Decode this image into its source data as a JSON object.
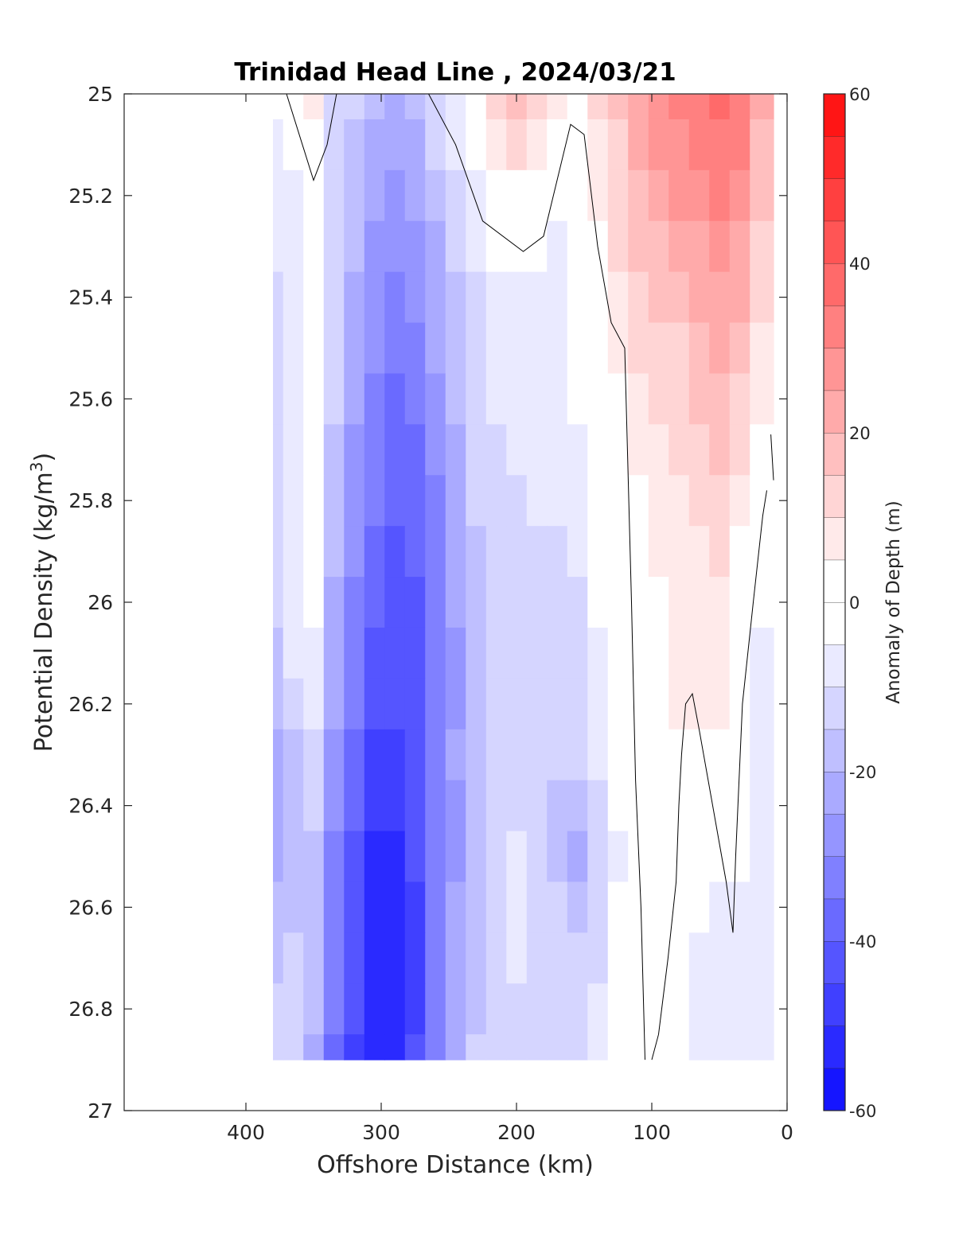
{
  "chart_data": {
    "type": "heatmap",
    "title": "Trinidad Head Line , 2024/03/21",
    "xlabel": "Offshore Distance (km)",
    "ylabel": "Potential Density (kg/m3)",
    "ylabel_main": "Potential Density (kg/m",
    "ylabel_sup": "3",
    "ylabel_close": ")",
    "colorbar_label": "Anomaly of Depth (m)",
    "xlim": [
      490,
      0
    ],
    "ylim": [
      25,
      27
    ],
    "y_reversed": true,
    "x_reversed": true,
    "x_ticks": [
      400,
      300,
      200,
      100,
      0
    ],
    "x_tick_labels": [
      "400",
      "300",
      "200",
      "100",
      "0"
    ],
    "y_ticks": [
      25,
      25.2,
      25.4,
      25.6,
      25.8,
      26,
      26.2,
      26.4,
      26.6,
      26.8,
      27
    ],
    "y_tick_labels": [
      "25",
      "25.2",
      "25.4",
      "25.6",
      "25.8",
      "26",
      "26.2",
      "26.4",
      "26.6",
      "26.8",
      "27"
    ],
    "colorbar_range": [
      -60,
      60
    ],
    "colorbar_step": 5,
    "colorbar_ticks": [
      -60,
      -40,
      -20,
      0,
      20,
      40,
      60
    ],
    "colorbar_tick_labels": [
      "-60",
      "-40",
      "-20",
      "0",
      "20",
      "40",
      "60"
    ],
    "colormap": {
      "negative": "#0000ff",
      "zero": "#ffffff",
      "positive": "#ff0000"
    },
    "data_extent": {
      "x": [
        380,
        10
      ],
      "y": [
        25,
        26.9
      ]
    },
    "grid": false,
    "x": [
      380,
      365,
      350,
      335,
      320,
      305,
      290,
      275,
      260,
      245,
      230,
      215,
      200,
      185,
      170,
      155,
      140,
      125,
      110,
      95,
      80,
      65,
      50,
      35,
      20
    ],
    "y": [
      25,
      25.1,
      25.2,
      25.3,
      25.4,
      25.5,
      25.6,
      25.7,
      25.8,
      25.9,
      26,
      26.1,
      26.2,
      26.3,
      26.4,
      26.5,
      26.6,
      26.7,
      26.8,
      26.9
    ],
    "z": [
      [
        -4,
        -3,
        5,
        -10,
        -14,
        -18,
        -20,
        -16,
        -10,
        -6,
        2,
        10,
        17,
        12,
        5,
        2,
        10,
        15,
        22,
        27,
        30,
        32,
        36,
        34,
        20
      ],
      [
        -6,
        -4,
        0,
        -12,
        -16,
        -21,
        -24,
        -20,
        -14,
        -8,
        0,
        7,
        12,
        8,
        -2,
        0,
        8,
        14,
        20,
        25,
        28,
        30,
        34,
        32,
        18
      ],
      [
        -6,
        -5,
        -2,
        -10,
        -16,
        -23,
        -27,
        -24,
        -18,
        -11,
        -6,
        0,
        4,
        2,
        -4,
        0,
        6,
        12,
        18,
        22,
        25,
        28,
        30,
        28,
        16
      ],
      [
        -8,
        -5,
        -3,
        -12,
        -18,
        -25,
        -29,
        -26,
        -20,
        -14,
        -9,
        -4,
        -2,
        -4,
        -6,
        -2,
        4,
        10,
        15,
        18,
        20,
        24,
        26,
        24,
        14
      ],
      [
        -10,
        -6,
        -4,
        -12,
        -20,
        -27,
        -31,
        -28,
        -22,
        -16,
        -11,
        -7,
        -7,
        -8,
        -6,
        -3,
        3,
        8,
        12,
        15,
        17,
        20,
        24,
        20,
        11
      ],
      [
        -10,
        -7,
        -4,
        -14,
        -22,
        -29,
        -33,
        -31,
        -24,
        -18,
        -12,
        -9,
        -8,
        -8,
        -6,
        -4,
        2,
        6,
        10,
        12,
        14,
        17,
        21,
        18,
        9
      ],
      [
        -12,
        -7,
        -3,
        -14,
        -24,
        -31,
        -35,
        -33,
        -26,
        -18,
        -12,
        -9,
        -8,
        -7,
        -6,
        -4,
        0,
        4,
        8,
        10,
        12,
        15,
        18,
        14,
        5
      ],
      [
        -12,
        -6,
        -2,
        -16,
        -26,
        -33,
        -37,
        -35,
        -28,
        -20,
        -13,
        -10,
        -9,
        -8,
        -7,
        -5,
        -1,
        2,
        6,
        8,
        10,
        12,
        15,
        10,
        0
      ],
      [
        -10,
        -5,
        -2,
        -16,
        -26,
        -34,
        -39,
        -37,
        -30,
        -22,
        -14,
        -11,
        -10,
        -9,
        -9,
        -7,
        -2,
        1,
        4,
        6,
        8,
        10,
        12,
        6,
        -2
      ],
      [
        -10,
        -5,
        -2,
        -18,
        -28,
        -36,
        -41,
        -39,
        -31,
        -23,
        -15,
        -12,
        -11,
        -10,
        -11,
        -9,
        -3,
        0,
        3,
        5,
        7,
        9,
        10,
        4,
        -3
      ],
      [
        -12,
        -6,
        -3,
        -20,
        -30,
        -38,
        -43,
        -41,
        -33,
        -24,
        -16,
        -13,
        -12,
        -11,
        -12,
        -10,
        -4,
        -1,
        2,
        4,
        6,
        8,
        8,
        3,
        -4
      ],
      [
        -15,
        -8,
        -6,
        -22,
        -32,
        -40,
        -44,
        -42,
        -34,
        -25,
        -17,
        -14,
        -13,
        -12,
        -13,
        -11,
        -5,
        -2,
        1,
        3,
        5,
        7,
        6,
        2,
        -5
      ],
      [
        -18,
        -12,
        -9,
        -24,
        -34,
        -42,
        -44,
        -40,
        -33,
        -25,
        -17,
        -14,
        -13,
        -13,
        -13,
        -12,
        -6,
        -2,
        0,
        2,
        5,
        6,
        5,
        1,
        -6
      ],
      [
        -20,
        -15,
        -12,
        -26,
        -36,
        -45,
        -46,
        -40,
        -32,
        -24,
        -16,
        -14,
        -12,
        -13,
        -14,
        -13,
        -7,
        -3,
        -1,
        1,
        3,
        3,
        3,
        0,
        -7
      ],
      [
        -22,
        -17,
        -14,
        -28,
        -38,
        -48,
        -49,
        -42,
        -34,
        -26,
        -17,
        -14,
        -11,
        -12,
        -15,
        -18,
        -12,
        -4,
        -1,
        2,
        0,
        -2,
        1,
        -1,
        -8
      ],
      [
        -20,
        -17,
        -15,
        -30,
        -40,
        -52,
        -51,
        -44,
        -34,
        -26,
        -18,
        -14,
        -9,
        -11,
        -15,
        -20,
        -14,
        -5,
        -1,
        3,
        0,
        -3,
        -1,
        -3,
        -8
      ],
      [
        -18,
        -15,
        -15,
        -30,
        -42,
        -54,
        -52,
        -45,
        -34,
        -24,
        -17,
        -13,
        -8,
        -10,
        -14,
        -17,
        -12,
        -4,
        -1,
        2,
        0,
        -4,
        -5,
        -5,
        -9
      ],
      [
        -16,
        -14,
        -16,
        -32,
        -44,
        -54,
        -53,
        -46,
        -34,
        -24,
        -16,
        -12,
        -8,
        -10,
        -12,
        -14,
        -10,
        -3,
        0,
        1,
        0,
        -5,
        -6,
        -8,
        -9
      ],
      [
        -14,
        -14,
        -18,
        -34,
        -44,
        -52,
        -51,
        -45,
        -33,
        -24,
        -15,
        -12,
        -10,
        -11,
        -13,
        -14,
        -9,
        -3,
        0,
        1,
        -1,
        -6,
        -7,
        -8,
        -8
      ],
      [
        -12,
        -14,
        -20,
        -36,
        -46,
        -51,
        -50,
        -44,
        -32,
        -22,
        -14,
        -12,
        -14,
        -13,
        -12,
        -10,
        -6,
        -2,
        0,
        1,
        -2,
        -7,
        -8,
        -8,
        -8
      ]
    ],
    "zero_contour_segments": [
      [
        [
          370,
          25
        ],
        [
          350,
          25.17
        ],
        [
          340,
          25.1
        ],
        [
          333,
          25
        ]
      ],
      [
        [
          265,
          25
        ],
        [
          245,
          25.1
        ],
        [
          225,
          25.25
        ],
        [
          195,
          25.31
        ],
        [
          180,
          25.28
        ],
        [
          160,
          25.06
        ],
        [
          150,
          25.08
        ],
        [
          140,
          25.3
        ],
        [
          130,
          25.45
        ],
        [
          120,
          25.5
        ],
        [
          115,
          26.0
        ],
        [
          112,
          26.35
        ],
        [
          108,
          26.6
        ],
        [
          105,
          26.9
        ]
      ],
      [
        [
          100,
          26.9
        ],
        [
          95,
          26.85
        ],
        [
          88,
          26.7
        ],
        [
          82,
          26.55
        ],
        [
          80,
          26.4
        ],
        [
          78,
          26.3
        ],
        [
          75,
          26.2
        ],
        [
          70,
          26.18
        ],
        [
          65,
          26.25
        ],
        [
          55,
          26.4
        ],
        [
          45,
          26.55
        ],
        [
          40,
          26.65
        ],
        [
          38,
          26.5
        ],
        [
          33,
          26.2
        ],
        [
          25,
          26.0
        ],
        [
          18,
          25.83
        ],
        [
          15,
          25.78
        ]
      ],
      [
        [
          12,
          25.67
        ],
        [
          10,
          25.76
        ]
      ]
    ]
  }
}
